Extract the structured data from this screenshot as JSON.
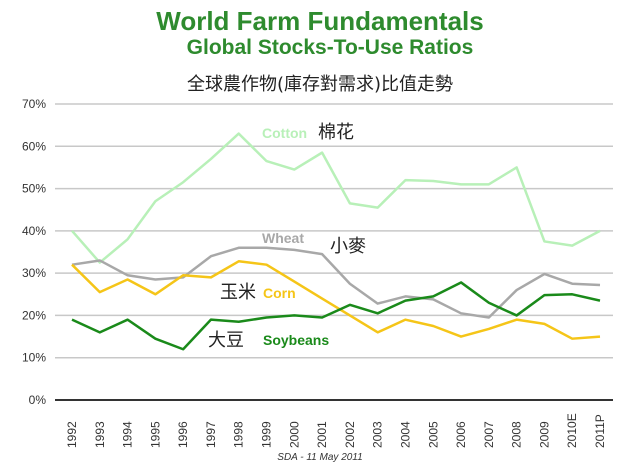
{
  "chart_data": {
    "type": "line",
    "title": "World Farm Fundamentals",
    "subtitle": "Global Stocks-To-Use Ratios",
    "subtitle_zh": "全球農作物(庫存對需求)比值走勢",
    "xlabel": "",
    "ylabel": "",
    "ylim": [
      0,
      70
    ],
    "yticks": [
      "0%",
      "10%",
      "20%",
      "30%",
      "40%",
      "50%",
      "60%",
      "70%"
    ],
    "grid": true,
    "categories": [
      "1992",
      "1993",
      "1994",
      "1995",
      "1996",
      "1997",
      "1998",
      "1999",
      "2000",
      "2001",
      "2002",
      "2003",
      "2004",
      "2005",
      "2006",
      "2007",
      "2008",
      "2009",
      "2010E",
      "2011P"
    ],
    "series": [
      {
        "name": "Cotton",
        "name_zh": "棉花",
        "color": "#b8f0b8",
        "values": [
          40,
          32.5,
          38,
          47,
          51.5,
          57,
          63,
          56.5,
          54.5,
          58.5,
          46.5,
          45.5,
          52,
          51.8,
          51,
          51,
          55,
          37.5,
          36.5,
          40
        ]
      },
      {
        "name": "Wheat",
        "name_zh": "小麥",
        "color": "#a8a8a8",
        "values": [
          32,
          33,
          29.5,
          28.5,
          29,
          34,
          36,
          36,
          35.5,
          34.5,
          27.5,
          22.8,
          24.5,
          23.8,
          20.5,
          19.5,
          26,
          29.8,
          27.5,
          27.2
        ]
      },
      {
        "name": "Corn",
        "name_zh": "玉米",
        "color": "#f5c518",
        "values": [
          32,
          25.5,
          28.5,
          25,
          29.5,
          29,
          32.8,
          32,
          28,
          24,
          20,
          16,
          19,
          17.5,
          15,
          16.8,
          19,
          18,
          14.5,
          15
        ]
      },
      {
        "name": "Soybeans",
        "name_zh": "大豆",
        "color": "#1a8a1a",
        "values": [
          19,
          16,
          19,
          14.5,
          12,
          19,
          18.5,
          19.5,
          20,
          19.5,
          22.5,
          20.5,
          23.5,
          24.5,
          27.8,
          23,
          20,
          24.8,
          25,
          23.5
        ]
      }
    ],
    "source": "SDA - 11 May 2011"
  }
}
